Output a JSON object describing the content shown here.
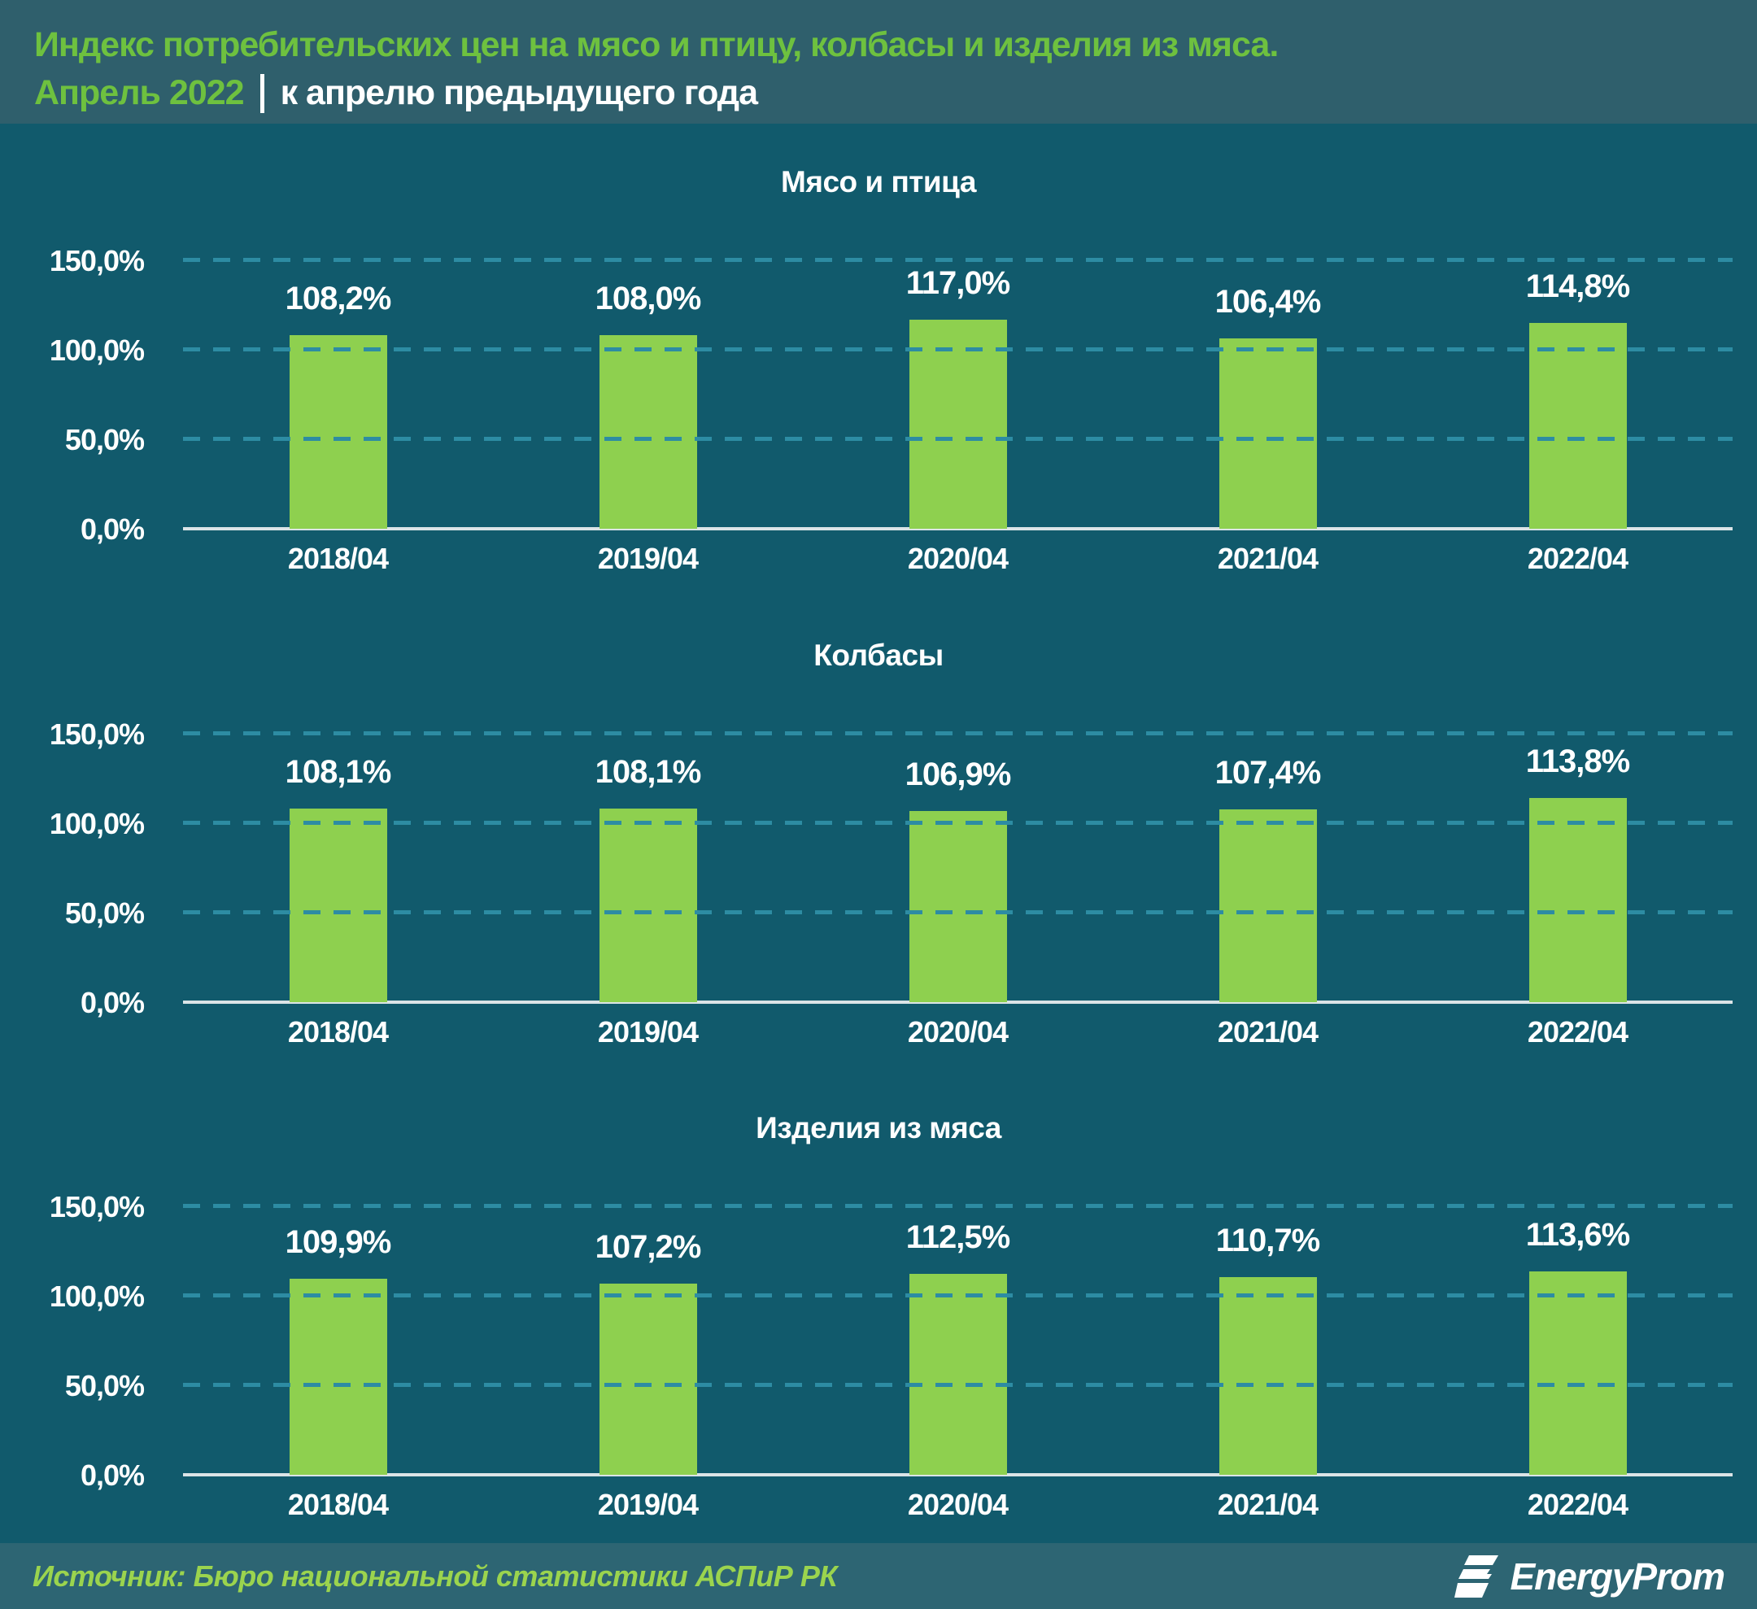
{
  "header": {
    "title_line1": "Индекс потребительских цен на мясо и птицу, колбасы и изделия из мяса.",
    "period": "Апрель 2022",
    "subtitle": "к апрелю предыдущего года"
  },
  "chart_data": [
    {
      "type": "bar",
      "title": "Мясо и птица",
      "categories": [
        "2018/04",
        "2019/04",
        "2020/04",
        "2021/04",
        "2022/04"
      ],
      "values": [
        108.2,
        108.0,
        117.0,
        106.4,
        114.8
      ],
      "value_labels": [
        "108,2%",
        "108,0%",
        "117,0%",
        "106,4%",
        "114,8%"
      ],
      "xlabel": "",
      "ylabel": "",
      "ylim": [
        0,
        150
      ],
      "y_ticks": [
        {
          "value": 0,
          "label": "0,0%"
        },
        {
          "value": 50,
          "label": "50,0%"
        },
        {
          "value": 100,
          "label": "100,0%"
        },
        {
          "value": 150,
          "label": "150,0%"
        }
      ],
      "grid": "horizontal-dashed",
      "legend": "none"
    },
    {
      "type": "bar",
      "title": "Колбасы",
      "categories": [
        "2018/04",
        "2019/04",
        "2020/04",
        "2021/04",
        "2022/04"
      ],
      "values": [
        108.1,
        108.1,
        106.9,
        107.4,
        113.8
      ],
      "value_labels": [
        "108,1%",
        "108,1%",
        "106,9%",
        "107,4%",
        "113,8%"
      ],
      "xlabel": "",
      "ylabel": "",
      "ylim": [
        0,
        150
      ],
      "y_ticks": [
        {
          "value": 0,
          "label": "0,0%"
        },
        {
          "value": 50,
          "label": "50,0%"
        },
        {
          "value": 100,
          "label": "100,0%"
        },
        {
          "value": 150,
          "label": "150,0%"
        }
      ],
      "grid": "horizontal-dashed",
      "legend": "none"
    },
    {
      "type": "bar",
      "title": "Изделия из мяса",
      "categories": [
        "2018/04",
        "2019/04",
        "2020/04",
        "2021/04",
        "2022/04"
      ],
      "values": [
        109.9,
        107.2,
        112.5,
        110.7,
        113.6
      ],
      "value_labels": [
        "109,9%",
        "107,2%",
        "112,5%",
        "110,7%",
        "113,6%"
      ],
      "xlabel": "",
      "ylabel": "",
      "ylim": [
        0,
        150
      ],
      "y_ticks": [
        {
          "value": 0,
          "label": "0,0%"
        },
        {
          "value": 50,
          "label": "50,0%"
        },
        {
          "value": 100,
          "label": "100,0%"
        },
        {
          "value": 150,
          "label": "150,0%"
        }
      ],
      "grid": "horizontal-dashed",
      "legend": "none"
    }
  ],
  "footer": {
    "source": "Источник: Бюро национальной статистики АСПиР РК",
    "logo_text": "EnergyProm"
  },
  "colors": {
    "header_bg": "#2f5f6c",
    "chart_bg": "#115a6c",
    "footer_bg": "#2d6573",
    "bar_green": "#8ed04f",
    "accent_green": "#6ec13f",
    "source_green": "#9bd44e",
    "gridline_teal": "#2d8ca3",
    "axis_line": "#dbe4e7",
    "text_white": "#ffffff"
  }
}
